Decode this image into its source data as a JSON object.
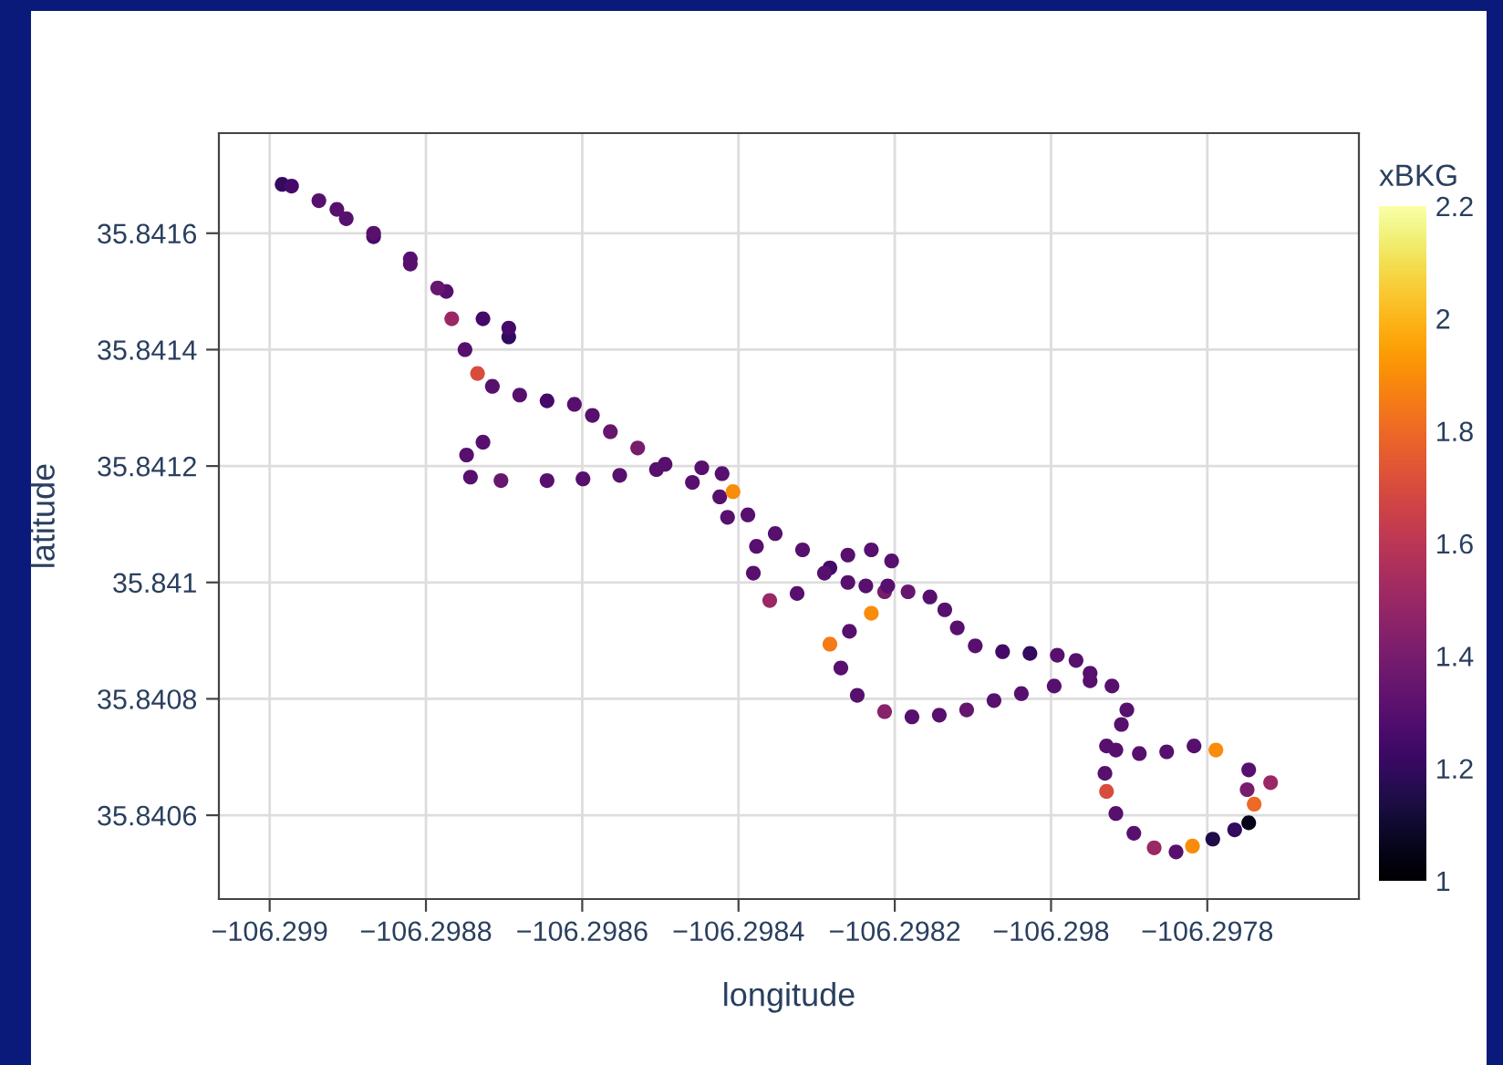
{
  "chart_data": {
    "type": "scatter",
    "xlabel": "longitude",
    "ylabel": "latitude",
    "clabel": "xBKG",
    "xlim": [
      -106.299065,
      -106.297606
    ],
    "ylim": [
      35.840456,
      35.841772
    ],
    "xticks": [
      {
        "value": -106.299,
        "label": "−106.299"
      },
      {
        "value": -106.2988,
        "label": "−106.2988"
      },
      {
        "value": -106.2986,
        "label": "−106.2986"
      },
      {
        "value": -106.2984,
        "label": "−106.2984"
      },
      {
        "value": -106.2982,
        "label": "−106.2982"
      },
      {
        "value": -106.298,
        "label": "−106.298"
      },
      {
        "value": -106.2978,
        "label": "−106.2978"
      }
    ],
    "yticks": [
      35.8406,
      35.8408,
      35.841,
      35.8412,
      35.8414,
      35.8416
    ],
    "clim": [
      1,
      2.2
    ],
    "cticks": [
      1,
      1.2,
      1.4,
      1.6,
      1.8,
      2,
      2.2
    ],
    "grid": true,
    "marker": "circle",
    "x": [
      -106.298984,
      -106.298972,
      -106.298937,
      -106.298902,
      -106.298867,
      -106.29882,
      -106.298774,
      -106.298727,
      -106.298694,
      -106.298694,
      -106.298914,
      -106.298867,
      -106.29882,
      -106.298785,
      -106.298767,
      -106.29875,
      -106.298734,
      -106.298715,
      -106.29868,
      -106.298645,
      -106.29861,
      -106.298587,
      -106.298564,
      -106.298529,
      -106.298494,
      -106.298459,
      -106.298424,
      -106.298388,
      -106.298353,
      -106.298318,
      -106.298283,
      -106.29826,
      -106.298237,
      -106.298213,
      -106.298183,
      -106.298155,
      -106.298136,
      -106.29812,
      -106.298097,
      -106.298062,
      -106.298027,
      -106.297992,
      -106.297968,
      -106.29795,
      -106.297922,
      -106.297903,
      -106.29791,
      -106.297929,
      -106.297931,
      -106.297929,
      -106.297917,
      -106.297894,
      -106.297868,
      -106.29784,
      -106.297819,
      -106.297793,
      -106.297765,
      -106.297747,
      -106.29774,
      -106.297749,
      -106.297719,
      -106.297747,
      -106.297789,
      -106.297817,
      -106.297852,
      -106.297887,
      -106.297917,
      -106.298727,
      -106.298748,
      -106.298743,
      -106.298704,
      -106.298645,
      -106.298599,
      -106.298552,
      -106.298505,
      -106.298447,
      -106.298421,
      -106.298407,
      -106.298414,
      -106.298377,
      -106.298381,
      -106.29836,
      -106.298325,
      -106.29829,
      -106.29826,
      -106.29823,
      -106.298204,
      -106.298209,
      -106.29823,
      -106.298258,
      -106.298283,
      -106.298269,
      -106.298248,
      -106.298213,
      -106.298178,
      -106.298143,
      -106.298108,
      -106.298073,
      -106.298038,
      -106.297996,
      -106.29795
    ],
    "values": [
      35.841684,
      35.841681,
      35.841656,
      35.841625,
      35.841594,
      35.841547,
      35.8415,
      35.841453,
      35.841422,
      35.841437,
      35.841641,
      35.8416,
      35.841556,
      35.841506,
      35.841453,
      35.8414,
      35.841359,
      35.841337,
      35.841322,
      35.841312,
      35.841306,
      35.841287,
      35.841259,
      35.841231,
      35.841203,
      35.841172,
      35.841147,
      35.841116,
      35.841084,
      35.841056,
      35.841025,
      35.841,
      35.840994,
      35.840984,
      35.840984,
      35.840975,
      35.840953,
      35.840922,
      35.840891,
      35.840881,
      35.840878,
      35.840875,
      35.840866,
      35.840844,
      35.840822,
      35.840781,
      35.840756,
      35.840719,
      35.840672,
      35.840641,
      35.840603,
      35.840569,
      35.840544,
      35.840537,
      35.840547,
      35.840559,
      35.840575,
      35.840587,
      35.840619,
      35.840644,
      35.840656,
      35.840678,
      35.840712,
      35.840719,
      35.840709,
      35.840706,
      35.840712,
      35.841241,
      35.841219,
      35.841181,
      35.841175,
      35.841175,
      35.841178,
      35.841184,
      35.841194,
      35.841197,
      35.841187,
      35.841156,
      35.841112,
      35.841062,
      35.841016,
      35.840969,
      35.840981,
      35.841016,
      35.841047,
      35.841056,
      35.841037,
      35.840994,
      35.840947,
      35.840916,
      35.840894,
      35.840853,
      35.840806,
      35.840778,
      35.840769,
      35.840772,
      35.840781,
      35.840797,
      35.840809,
      35.840822,
      35.840831
    ],
    "cvalues": [
      1.2,
      1.25,
      1.3,
      1.3,
      1.25,
      1.3,
      1.3,
      1.25,
      1.2,
      1.25,
      1.3,
      1.3,
      1.3,
      1.35,
      1.5,
      1.3,
      1.7,
      1.3,
      1.3,
      1.25,
      1.3,
      1.3,
      1.35,
      1.4,
      1.3,
      1.3,
      1.3,
      1.3,
      1.3,
      1.3,
      1.25,
      1.3,
      1.3,
      1.4,
      1.35,
      1.3,
      1.3,
      1.3,
      1.3,
      1.25,
      1.2,
      1.3,
      1.3,
      1.3,
      1.3,
      1.3,
      1.3,
      1.3,
      1.3,
      1.7,
      1.3,
      1.3,
      1.5,
      1.3,
      1.9,
      1.15,
      1.2,
      1.05,
      1.8,
      1.4,
      1.5,
      1.3,
      1.9,
      1.3,
      1.3,
      1.3,
      1.3,
      1.3,
      1.3,
      1.3,
      1.35,
      1.3,
      1.3,
      1.3,
      1.3,
      1.3,
      1.3,
      1.9,
      1.3,
      1.3,
      1.3,
      1.5,
      1.3,
      1.3,
      1.3,
      1.3,
      1.3,
      1.3,
      1.9,
      1.3,
      1.85,
      1.3,
      1.3,
      1.45,
      1.3,
      1.3,
      1.35,
      1.3,
      1.3,
      1.3,
      1.3
    ]
  }
}
